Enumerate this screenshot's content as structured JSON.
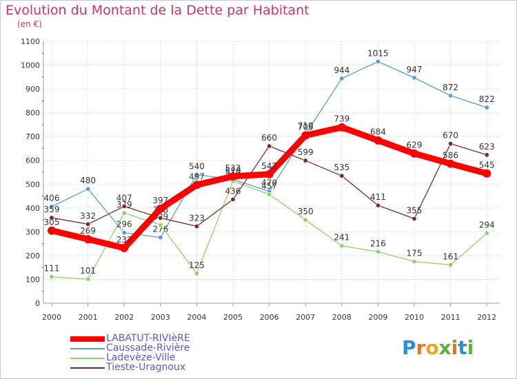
{
  "title": "Evolution du Montant de la Dette par Habitant",
  "unit_label": "(en €)",
  "logo": {
    "text": "Proxiti",
    "letters": [
      "P",
      "r",
      "o",
      "x",
      "i",
      "t",
      "i"
    ],
    "colors": [
      "#2b8fd6",
      "#e8731c",
      "#f2a51a",
      "#5bb13a",
      "#e8731c",
      "#2b8fd6",
      "#5bb13a"
    ]
  },
  "chart_data": {
    "type": "line",
    "title": "Evolution du Montant de la Dette par Habitant",
    "ylabel": "(en €)",
    "xlabel": "",
    "categories": [
      "2000",
      "2001",
      "2002",
      "2003",
      "2004",
      "2005",
      "2006",
      "2007",
      "2008",
      "2009",
      "2010",
      "2011",
      "2012"
    ],
    "ylim": [
      0,
      1100
    ],
    "yticks": [
      0,
      100,
      200,
      300,
      400,
      500,
      600,
      700,
      800,
      900,
      1000,
      1100
    ],
    "grid": true,
    "legend_position": "bottom-left",
    "series": [
      {
        "name": "Caussade-Rivière",
        "color": "#5a9bd5",
        "values": [
          406,
          480,
          296,
          276,
          540,
          520,
          470,
          710,
          944,
          1015,
          947,
          872,
          822
        ]
      },
      {
        "name": "Ladevèze-Ville",
        "color": "#8fd16a",
        "values": [
          111,
          101,
          379,
          329,
          125,
          513,
          457,
          350,
          241,
          216,
          175,
          161,
          294
        ]
      },
      {
        "name": "Tieste-Uragnoux",
        "color": "#7a2a2a",
        "values": [
          359,
          332,
          407,
          358,
          323,
          436,
          660,
          599,
          535,
          411,
          355,
          670,
          623
        ]
      },
      {
        "name": "LABATUT-RIVIèRE",
        "color": "#ff0000",
        "values": [
          305,
          269,
          232,
          397,
          497,
          533,
          542,
          705,
          739,
          684,
          629,
          586,
          545
        ]
      }
    ]
  }
}
